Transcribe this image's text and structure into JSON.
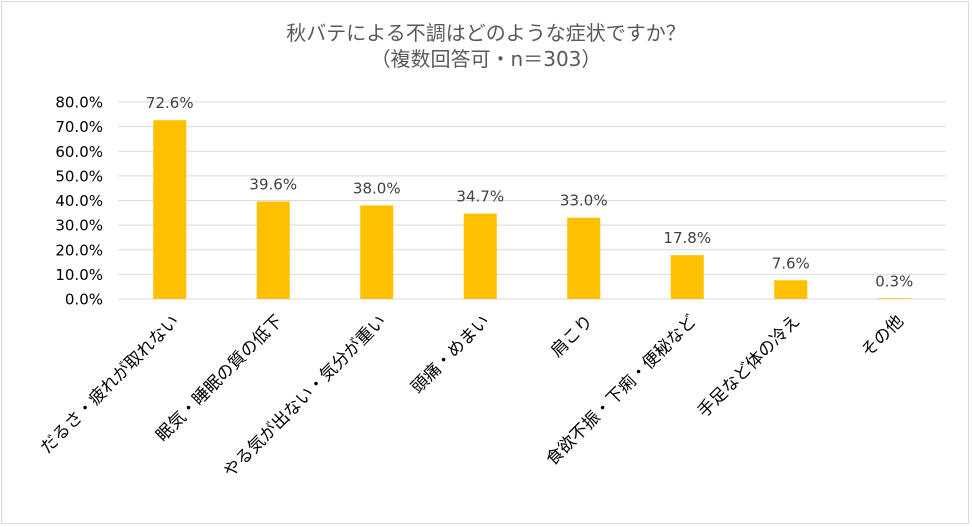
{
  "chart_data": {
    "type": "bar",
    "title": "秋バテによる不調はどのような症状ですか？",
    "subtitle": "（複数回答可・n＝303）",
    "categories": [
      "だるさ・疲れが取れない",
      "眠気・睡眠の質の低下",
      "やる気が出ない・気分が重い",
      "頭痛・めまい",
      "肩こり",
      "食欲不振・下痢・便秘など",
      "手足など体の冷え",
      "その他"
    ],
    "values": [
      72.6,
      39.6,
      38.0,
      34.7,
      33.0,
      17.8,
      7.6,
      0.3
    ],
    "data_labels": [
      "72.6%",
      "39.6%",
      "38.0%",
      "34.7%",
      "33.0%",
      "17.8%",
      "7.6%",
      "0.3%"
    ],
    "yticks": [
      "0.0%",
      "10.0%",
      "20.0%",
      "30.0%",
      "40.0%",
      "50.0%",
      "60.0%",
      "70.0%",
      "80.0%"
    ],
    "ylim": [
      0,
      80
    ],
    "xlabel": "",
    "ylabel": "",
    "grid": true,
    "bar_color": "#FFC000"
  }
}
